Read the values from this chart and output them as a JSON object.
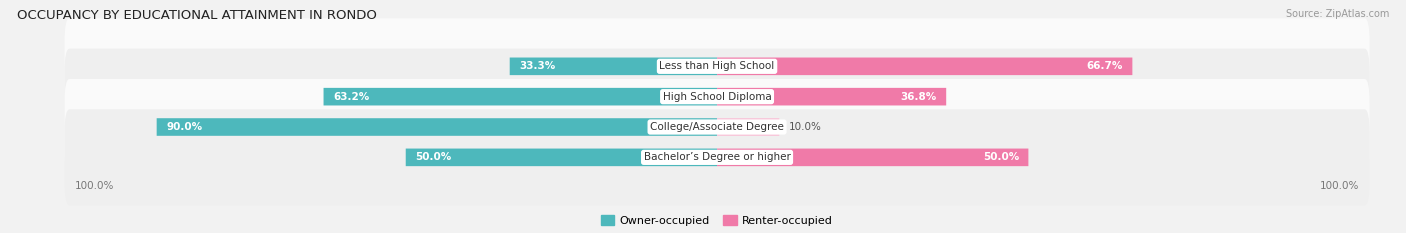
{
  "title": "OCCUPANCY BY EDUCATIONAL ATTAINMENT IN RONDO",
  "source": "Source: ZipAtlas.com",
  "categories": [
    "Less than High School",
    "High School Diploma",
    "College/Associate Degree",
    "Bachelor’s Degree or higher"
  ],
  "owner_pct": [
    33.3,
    63.2,
    90.0,
    50.0
  ],
  "renter_pct": [
    66.7,
    36.8,
    10.0,
    50.0
  ],
  "owner_color": "#4db8bc",
  "renter_color": "#f07aa8",
  "renter_color_light": "#f9c0d6",
  "bg_color": "#f2f2f2",
  "row_color_odd": "#fafafa",
  "row_color_even": "#efefef",
  "title_fontsize": 9.5,
  "source_fontsize": 7,
  "label_fontsize": 7.5,
  "axis_label_fontsize": 7.5,
  "legend_fontsize": 8,
  "owner_label_color_inside": "#ffffff",
  "owner_label_color_outside": "#555555",
  "renter_label_color_inside": "#555555",
  "renter_label_color_outside": "#555555"
}
